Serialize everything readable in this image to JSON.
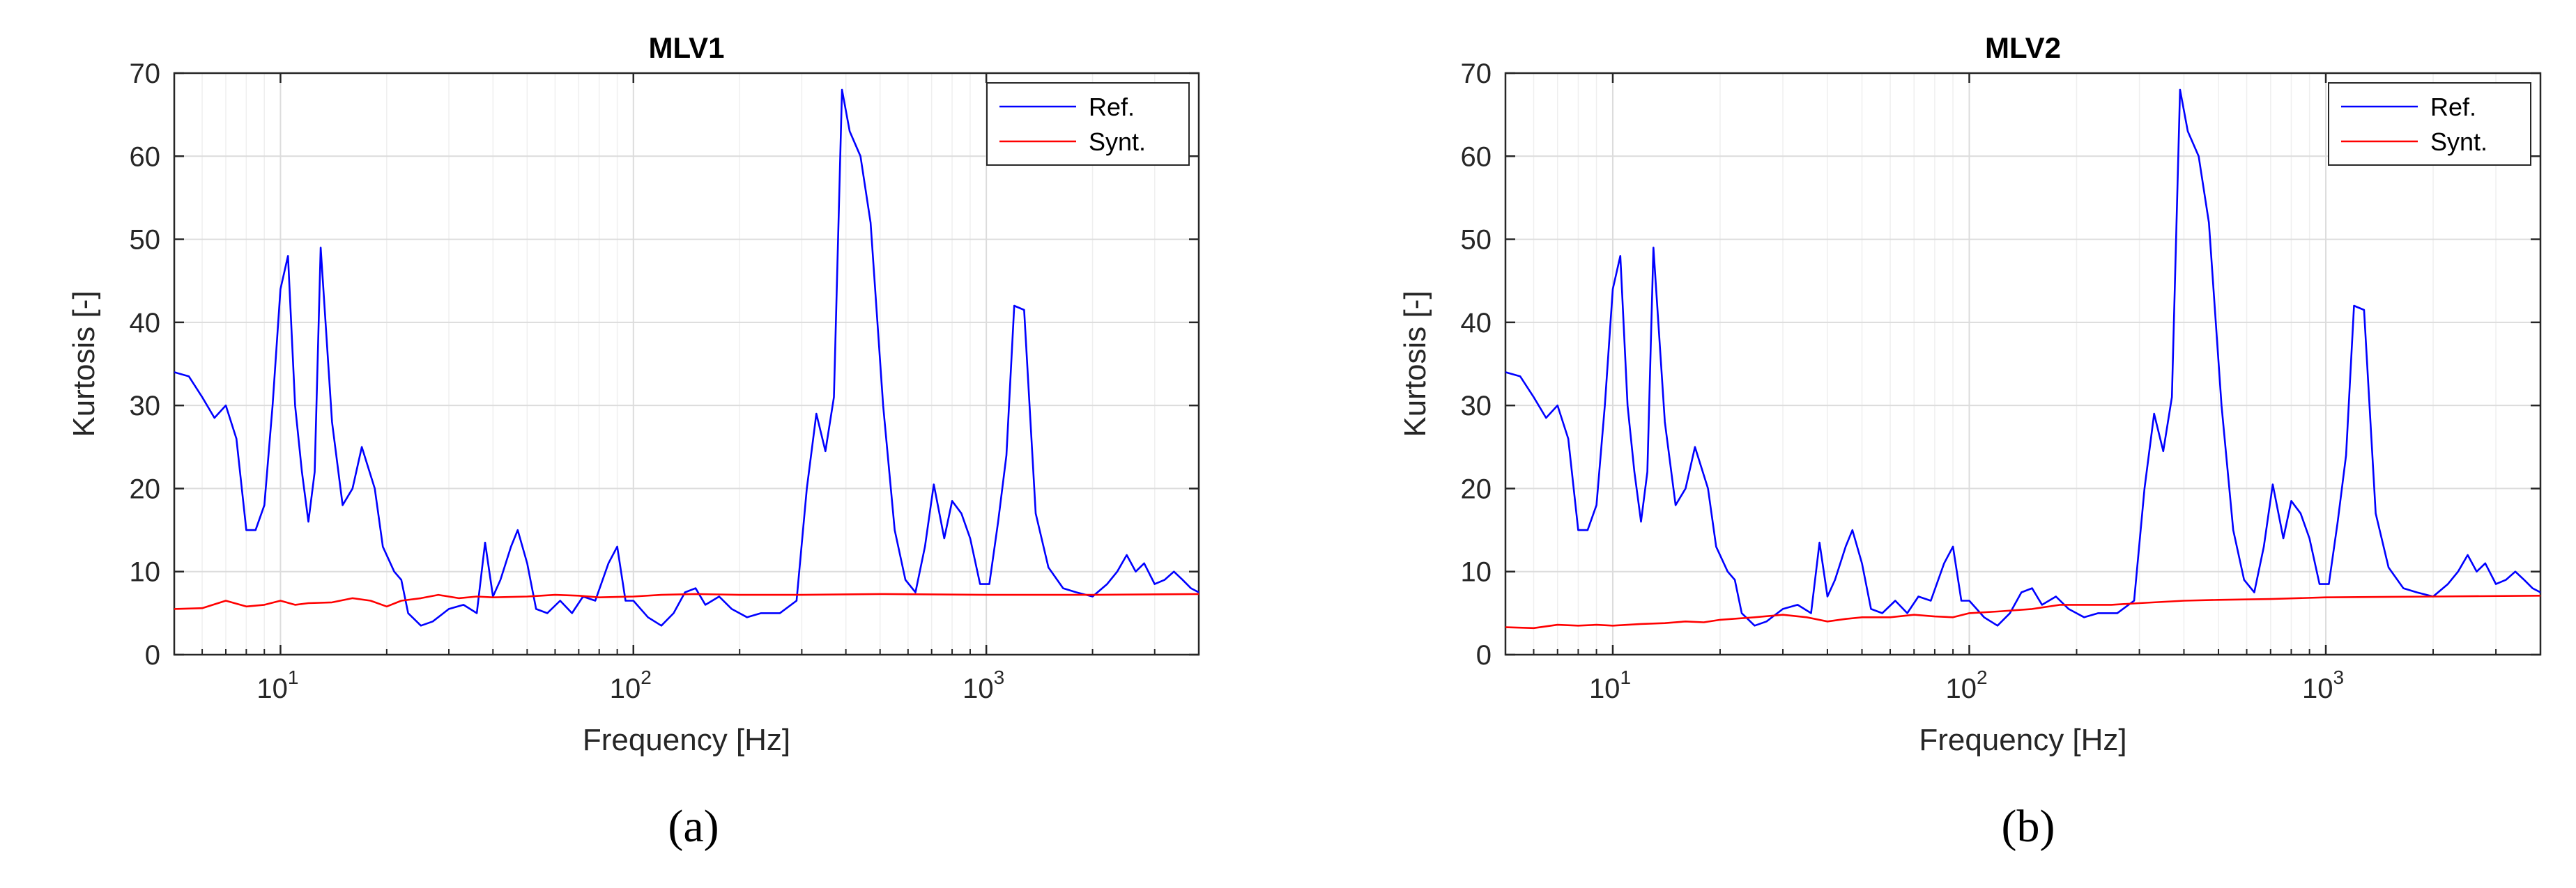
{
  "chart_data": [
    {
      "type": "line",
      "title": "MLV1",
      "xlabel": "Frequency [Hz]",
      "ylabel": "Kurtosis [-]",
      "caption": "(a)",
      "xscale": "log",
      "xlim": [
        5,
        4000
      ],
      "ylim": [
        0,
        70
      ],
      "yticks": [
        "0",
        "10",
        "20",
        "30",
        "40",
        "50",
        "60",
        "70"
      ],
      "xticks": [
        {
          "base": "10",
          "exp": "1",
          "value": 10
        },
        {
          "base": "10",
          "exp": "2",
          "value": 100
        },
        {
          "base": "10",
          "exp": "3",
          "value": 1000
        }
      ],
      "grid": true,
      "legend_position": "top-right",
      "series": [
        {
          "name": "Ref.",
          "color": "#0000ff",
          "points": [
            [
              5,
              34
            ],
            [
              5.5,
              33.5
            ],
            [
              6,
              31
            ],
            [
              6.5,
              28.5
            ],
            [
              7,
              30
            ],
            [
              7.5,
              26
            ],
            [
              8,
              15
            ],
            [
              8.5,
              15
            ],
            [
              9,
              18
            ],
            [
              9.5,
              30
            ],
            [
              10,
              44
            ],
            [
              10.5,
              48
            ],
            [
              11,
              30
            ],
            [
              11.5,
              22
            ],
            [
              12,
              16
            ],
            [
              12.5,
              22
            ],
            [
              13,
              49
            ],
            [
              14,
              28
            ],
            [
              15,
              18
            ],
            [
              16,
              20
            ],
            [
              17,
              25
            ],
            [
              18.5,
              20
            ],
            [
              19.5,
              13
            ],
            [
              21,
              10
            ],
            [
              22,
              9
            ],
            [
              23,
              5
            ],
            [
              25,
              3.5
            ],
            [
              27,
              4
            ],
            [
              30,
              5.5
            ],
            [
              33,
              6
            ],
            [
              36,
              5
            ],
            [
              38,
              13.5
            ],
            [
              40,
              7
            ],
            [
              42,
              9
            ],
            [
              45,
              13
            ],
            [
              47,
              15
            ],
            [
              50,
              11
            ],
            [
              53,
              5.5
            ],
            [
              57,
              5
            ],
            [
              62,
              6.5
            ],
            [
              67,
              5
            ],
            [
              72,
              7
            ],
            [
              78,
              6.5
            ],
            [
              85,
              11
            ],
            [
              90,
              13
            ],
            [
              95,
              6.5
            ],
            [
              100,
              6.5
            ],
            [
              110,
              4.5
            ],
            [
              120,
              3.5
            ],
            [
              130,
              5
            ],
            [
              140,
              7.5
            ],
            [
              150,
              8
            ],
            [
              160,
              6
            ],
            [
              175,
              7
            ],
            [
              190,
              5.5
            ],
            [
              210,
              4.5
            ],
            [
              230,
              5
            ],
            [
              260,
              5
            ],
            [
              290,
              6.5
            ],
            [
              310,
              20
            ],
            [
              330,
              29
            ],
            [
              350,
              24.5
            ],
            [
              370,
              31
            ],
            [
              390,
              68
            ],
            [
              410,
              63
            ],
            [
              440,
              60
            ],
            [
              470,
              52
            ],
            [
              510,
              30
            ],
            [
              550,
              15
            ],
            [
              590,
              9
            ],
            [
              630,
              7.5
            ],
            [
              670,
              13
            ],
            [
              710,
              20.5
            ],
            [
              760,
              14
            ],
            [
              800,
              18.5
            ],
            [
              850,
              17
            ],
            [
              900,
              14
            ],
            [
              960,
              8.5
            ],
            [
              1020,
              8.5
            ],
            [
              1080,
              16
            ],
            [
              1140,
              24
            ],
            [
              1200,
              42
            ],
            [
              1280,
              41.5
            ],
            [
              1380,
              17
            ],
            [
              1500,
              10.5
            ],
            [
              1650,
              8
            ],
            [
              1800,
              7.5
            ],
            [
              2000,
              7
            ],
            [
              2200,
              8.5
            ],
            [
              2350,
              10
            ],
            [
              2500,
              12
            ],
            [
              2650,
              10
            ],
            [
              2800,
              11
            ],
            [
              3000,
              8.5
            ],
            [
              3200,
              9
            ],
            [
              3400,
              10
            ],
            [
              3600,
              9
            ],
            [
              3800,
              8
            ],
            [
              4000,
              7.5
            ]
          ]
        },
        {
          "name": "Synt.",
          "color": "#ff0000",
          "points": [
            [
              5,
              5.5
            ],
            [
              6,
              5.6
            ],
            [
              7,
              6.5
            ],
            [
              8,
              5.8
            ],
            [
              9,
              6
            ],
            [
              10,
              6.5
            ],
            [
              11,
              6
            ],
            [
              12,
              6.2
            ],
            [
              14,
              6.3
            ],
            [
              16,
              6.8
            ],
            [
              18,
              6.5
            ],
            [
              20,
              5.8
            ],
            [
              22,
              6.5
            ],
            [
              25,
              6.8
            ],
            [
              28,
              7.2
            ],
            [
              32,
              6.8
            ],
            [
              36,
              7
            ],
            [
              40,
              6.9
            ],
            [
              50,
              7
            ],
            [
              60,
              7.2
            ],
            [
              70,
              7.1
            ],
            [
              80,
              6.9
            ],
            [
              100,
              7
            ],
            [
              120,
              7.2
            ],
            [
              150,
              7.3
            ],
            [
              200,
              7.2
            ],
            [
              300,
              7.2
            ],
            [
              500,
              7.3
            ],
            [
              1000,
              7.2
            ],
            [
              2000,
              7.2
            ],
            [
              4000,
              7.3
            ]
          ]
        }
      ]
    },
    {
      "type": "line",
      "title": "MLV2",
      "xlabel": "Frequency [Hz]",
      "ylabel": "Kurtosis [-]",
      "caption": "(b)",
      "xscale": "log",
      "xlim": [
        5,
        4000
      ],
      "ylim": [
        0,
        70
      ],
      "yticks": [
        "0",
        "10",
        "20",
        "30",
        "40",
        "50",
        "60",
        "70"
      ],
      "xticks": [
        {
          "base": "10",
          "exp": "1",
          "value": 10
        },
        {
          "base": "10",
          "exp": "2",
          "value": 100
        },
        {
          "base": "10",
          "exp": "3",
          "value": 1000
        }
      ],
      "grid": true,
      "legend_position": "top-right",
      "series": [
        {
          "name": "Ref.",
          "color": "#0000ff",
          "points": [
            [
              5,
              34
            ],
            [
              5.5,
              33.5
            ],
            [
              6,
              31
            ],
            [
              6.5,
              28.5
            ],
            [
              7,
              30
            ],
            [
              7.5,
              26
            ],
            [
              8,
              15
            ],
            [
              8.5,
              15
            ],
            [
              9,
              18
            ],
            [
              9.5,
              30
            ],
            [
              10,
              44
            ],
            [
              10.5,
              48
            ],
            [
              11,
              30
            ],
            [
              11.5,
              22
            ],
            [
              12,
              16
            ],
            [
              12.5,
              22
            ],
            [
              13,
              49
            ],
            [
              14,
              28
            ],
            [
              15,
              18
            ],
            [
              16,
              20
            ],
            [
              17,
              25
            ],
            [
              18.5,
              20
            ],
            [
              19.5,
              13
            ],
            [
              21,
              10
            ],
            [
              22,
              9
            ],
            [
              23,
              5
            ],
            [
              25,
              3.5
            ],
            [
              27,
              4
            ],
            [
              30,
              5.5
            ],
            [
              33,
              6
            ],
            [
              36,
              5
            ],
            [
              38,
              13.5
            ],
            [
              40,
              7
            ],
            [
              42,
              9
            ],
            [
              45,
              13
            ],
            [
              47,
              15
            ],
            [
              50,
              11
            ],
            [
              53,
              5.5
            ],
            [
              57,
              5
            ],
            [
              62,
              6.5
            ],
            [
              67,
              5
            ],
            [
              72,
              7
            ],
            [
              78,
              6.5
            ],
            [
              85,
              11
            ],
            [
              90,
              13
            ],
            [
              95,
              6.5
            ],
            [
              100,
              6.5
            ],
            [
              110,
              4.5
            ],
            [
              120,
              3.5
            ],
            [
              130,
              5
            ],
            [
              140,
              7.5
            ],
            [
              150,
              8
            ],
            [
              160,
              6
            ],
            [
              175,
              7
            ],
            [
              190,
              5.5
            ],
            [
              210,
              4.5
            ],
            [
              230,
              5
            ],
            [
              260,
              5
            ],
            [
              290,
              6.5
            ],
            [
              310,
              20
            ],
            [
              330,
              29
            ],
            [
              350,
              24.5
            ],
            [
              370,
              31
            ],
            [
              390,
              68
            ],
            [
              410,
              63
            ],
            [
              440,
              60
            ],
            [
              470,
              52
            ],
            [
              510,
              30
            ],
            [
              550,
              15
            ],
            [
              590,
              9
            ],
            [
              630,
              7.5
            ],
            [
              670,
              13
            ],
            [
              710,
              20.5
            ],
            [
              760,
              14
            ],
            [
              800,
              18.5
            ],
            [
              850,
              17
            ],
            [
              900,
              14
            ],
            [
              960,
              8.5
            ],
            [
              1020,
              8.5
            ],
            [
              1080,
              16
            ],
            [
              1140,
              24
            ],
            [
              1200,
              42
            ],
            [
              1280,
              41.5
            ],
            [
              1380,
              17
            ],
            [
              1500,
              10.5
            ],
            [
              1650,
              8
            ],
            [
              1800,
              7.5
            ],
            [
              2000,
              7
            ],
            [
              2200,
              8.5
            ],
            [
              2350,
              10
            ],
            [
              2500,
              12
            ],
            [
              2650,
              10
            ],
            [
              2800,
              11
            ],
            [
              3000,
              8.5
            ],
            [
              3200,
              9
            ],
            [
              3400,
              10
            ],
            [
              3600,
              9
            ],
            [
              3800,
              8
            ],
            [
              4000,
              7.5
            ]
          ]
        },
        {
          "name": "Synt.",
          "color": "#ff0000",
          "points": [
            [
              5,
              3.3
            ],
            [
              6,
              3.2
            ],
            [
              7,
              3.6
            ],
            [
              8,
              3.5
            ],
            [
              9,
              3.6
            ],
            [
              10,
              3.5
            ],
            [
              12,
              3.7
            ],
            [
              14,
              3.8
            ],
            [
              16,
              4
            ],
            [
              18,
              3.9
            ],
            [
              20,
              4.2
            ],
            [
              25,
              4.5
            ],
            [
              30,
              4.8
            ],
            [
              35,
              4.5
            ],
            [
              40,
              4
            ],
            [
              45,
              4.3
            ],
            [
              50,
              4.5
            ],
            [
              60,
              4.5
            ],
            [
              70,
              4.8
            ],
            [
              80,
              4.6
            ],
            [
              90,
              4.5
            ],
            [
              100,
              5
            ],
            [
              120,
              5.2
            ],
            [
              150,
              5.5
            ],
            [
              180,
              6
            ],
            [
              200,
              6
            ],
            [
              250,
              6
            ],
            [
              300,
              6.2
            ],
            [
              400,
              6.5
            ],
            [
              500,
              6.6
            ],
            [
              700,
              6.7
            ],
            [
              1000,
              6.9
            ],
            [
              2000,
              7
            ],
            [
              4000,
              7.1
            ]
          ]
        }
      ]
    }
  ]
}
